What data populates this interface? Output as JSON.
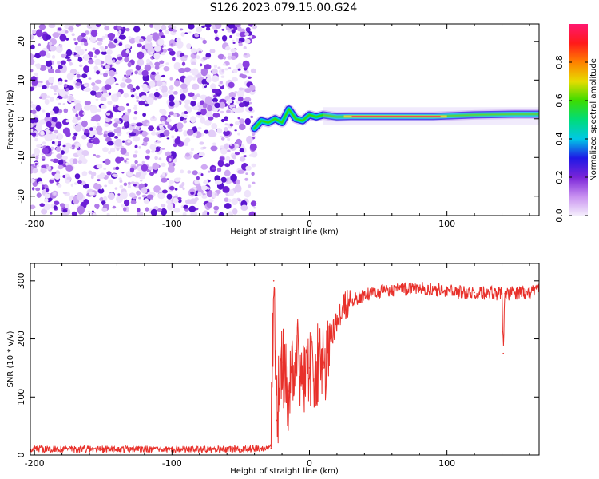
{
  "figure_title": "S126.2023.079.15.00.G24",
  "chart_data": [
    {
      "type": "heatmap",
      "xlabel": "Height of straight line (km)",
      "ylabel": "Frequency (Hz)",
      "xlim": [
        -203,
        167
      ],
      "ylim": [
        -25,
        24.5
      ],
      "x_ticks": [
        -200,
        -100,
        0,
        100
      ],
      "y_ticks": [
        -20,
        -10,
        0,
        10,
        20
      ],
      "colorbar": {
        "label": "Normalized spectral amplitude",
        "range": [
          0.0,
          1.0
        ],
        "ticks": [
          0.0,
          0.2,
          0.4,
          0.6,
          0.8
        ],
        "colormap": "rainbow",
        "colors": [
          "#f4eefc",
          "#c890f0",
          "#7a24d8",
          "#1e18e6",
          "#00c8e6",
          "#00dc7a",
          "#3cdc00",
          "#e6dc00",
          "#ff8000",
          "#ff1a1a",
          "#ff1870"
        ]
      },
      "noise_region_x": [
        -203,
        -40
      ],
      "signal_track": [
        {
          "x": -40,
          "y": -2.5
        },
        {
          "x": -35,
          "y": -0.5
        },
        {
          "x": -30,
          "y": -1.0
        },
        {
          "x": -25,
          "y": 0.0
        },
        {
          "x": -20,
          "y": -1.0
        },
        {
          "x": -15,
          "y": 2.5
        },
        {
          "x": -10,
          "y": 0.0
        },
        {
          "x": -5,
          "y": -0.5
        },
        {
          "x": 0,
          "y": 1.0
        },
        {
          "x": 5,
          "y": 0.5
        },
        {
          "x": 10,
          "y": 1.0
        },
        {
          "x": 20,
          "y": 0.5
        },
        {
          "x": 30,
          "y": 0.6
        },
        {
          "x": 60,
          "y": 0.6
        },
        {
          "x": 90,
          "y": 0.6
        },
        {
          "x": 120,
          "y": 1.0
        },
        {
          "x": 150,
          "y": 1.2
        },
        {
          "x": 167,
          "y": 1.2
        }
      ]
    },
    {
      "type": "line",
      "xlabel": "Height of straight line (km)",
      "ylabel": "SNR (10 * v/v)",
      "xlim": [
        -203,
        167
      ],
      "ylim": [
        0,
        330
      ],
      "x_ticks": [
        -200,
        -100,
        0,
        100
      ],
      "y_ticks": [
        0,
        100,
        200,
        300
      ],
      "line_color": "#e8302a",
      "series": [
        {
          "values": [
            {
              "x": -203,
              "y": 10
            },
            {
              "x": -150,
              "y": 10
            },
            {
              "x": -100,
              "y": 10
            },
            {
              "x": -50,
              "y": 10
            },
            {
              "x": -28,
              "y": 12
            },
            {
              "x": -26,
              "y": 300
            },
            {
              "x": -24,
              "y": 60
            },
            {
              "x": -20,
              "y": 160
            },
            {
              "x": -15,
              "y": 110
            },
            {
              "x": -10,
              "y": 180
            },
            {
              "x": -5,
              "y": 130
            },
            {
              "x": 0,
              "y": 150
            },
            {
              "x": 5,
              "y": 160
            },
            {
              "x": 10,
              "y": 150
            },
            {
              "x": 15,
              "y": 200
            },
            {
              "x": 20,
              "y": 235
            },
            {
              "x": 25,
              "y": 255
            },
            {
              "x": 30,
              "y": 265
            },
            {
              "x": 40,
              "y": 275
            },
            {
              "x": 50,
              "y": 280
            },
            {
              "x": 60,
              "y": 283
            },
            {
              "x": 80,
              "y": 288
            },
            {
              "x": 90,
              "y": 286
            },
            {
              "x": 100,
              "y": 282
            },
            {
              "x": 120,
              "y": 280
            },
            {
              "x": 140,
              "y": 278
            },
            {
              "x": 141,
              "y": 175
            },
            {
              "x": 142,
              "y": 278
            },
            {
              "x": 167,
              "y": 282
            }
          ]
        }
      ]
    }
  ]
}
